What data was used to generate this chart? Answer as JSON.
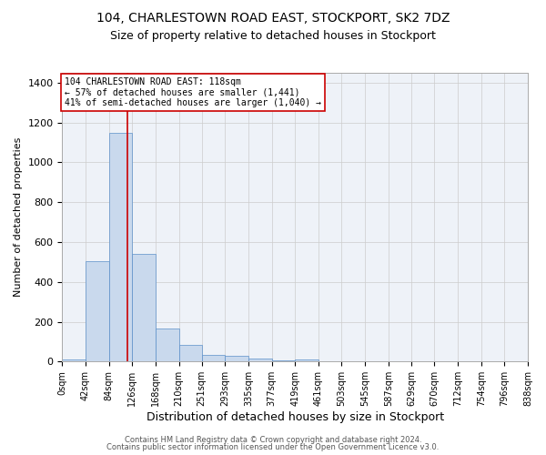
{
  "title1": "104, CHARLESTOWN ROAD EAST, STOCKPORT, SK2 7DZ",
  "title2": "Size of property relative to detached houses in Stockport",
  "xlabel": "Distribution of detached houses by size in Stockport",
  "ylabel": "Number of detached properties",
  "footer1": "Contains HM Land Registry data © Crown copyright and database right 2024.",
  "footer2": "Contains public sector information licensed under the Open Government Licence v3.0.",
  "bin_edges": [
    0,
    42,
    84,
    126,
    168,
    210,
    251,
    293,
    335,
    377,
    419,
    461,
    503,
    545,
    587,
    629,
    670,
    712,
    754,
    796,
    838
  ],
  "bar_heights": [
    10,
    505,
    1150,
    540,
    165,
    82,
    35,
    27,
    15,
    5,
    12,
    0,
    0,
    0,
    0,
    0,
    0,
    0,
    0,
    0
  ],
  "bar_color": "#c9d9ed",
  "bar_edge_color": "#5b8fc9",
  "grid_color": "#cccccc",
  "bg_color": "#eef2f8",
  "property_line_x": 118,
  "property_line_color": "#cc0000",
  "annotation_line1": "104 CHARLESTOWN ROAD EAST: 118sqm",
  "annotation_line2": "← 57% of detached houses are smaller (1,441)",
  "annotation_line3": "41% of semi-detached houses are larger (1,040) →",
  "annotation_box_color": "#cc0000",
  "ylim": [
    0,
    1450
  ],
  "xlim": [
    0,
    838
  ],
  "yticks": [
    0,
    200,
    400,
    600,
    800,
    1000,
    1200,
    1400
  ],
  "xtick_labels": [
    "0sqm",
    "42sqm",
    "84sqm",
    "126sqm",
    "168sqm",
    "210sqm",
    "251sqm",
    "293sqm",
    "335sqm",
    "377sqm",
    "419sqm",
    "461sqm",
    "503sqm",
    "545sqm",
    "587sqm",
    "629sqm",
    "670sqm",
    "712sqm",
    "754sqm",
    "796sqm",
    "838sqm"
  ],
  "title1_fontsize": 10,
  "title2_fontsize": 9,
  "ylabel_fontsize": 8,
  "xlabel_fontsize": 9,
  "ytick_fontsize": 8,
  "xtick_fontsize": 7,
  "annotation_fontsize": 7,
  "footer_fontsize": 6
}
